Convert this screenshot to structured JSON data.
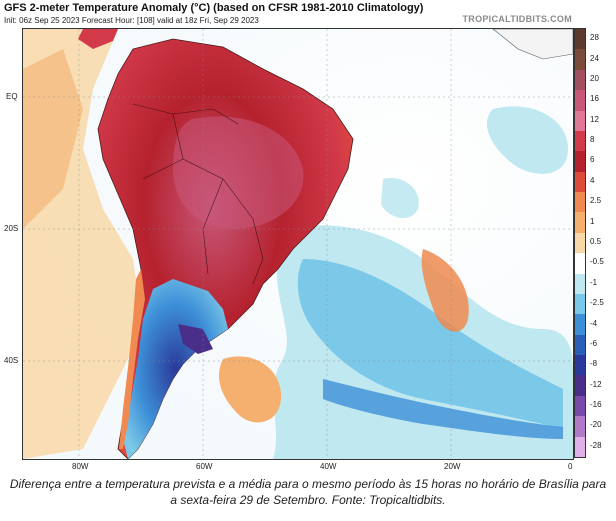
{
  "header": {
    "title": "GFS 2-meter Temperature Anomaly (°C) (based on CFSR 1981-2010 Climatology)",
    "subtitle": "Init: 06z Sep 25 2023   Forecast Hour: [108]   valid at 18z Fri, Sep 29 2023",
    "brand": "TROPICALTIDBITS.COM"
  },
  "map": {
    "lat_labels": [
      "EQ",
      "20S",
      "40S"
    ],
    "lon_labels": [
      "80W",
      "60W",
      "40W",
      "20W",
      "0"
    ]
  },
  "legend": {
    "labels": [
      "28",
      "24",
      "20",
      "16",
      "12",
      "8",
      "6",
      "4",
      "2.5",
      "1",
      "0.5",
      "-0.5",
      "-1",
      "-2.5",
      "-4",
      "-6",
      "-8",
      "-12",
      "-16",
      "-20",
      "-28"
    ],
    "colors": [
      "#5c3a2e",
      "#7a4a3a",
      "#a0505e",
      "#c8587a",
      "#e07a94",
      "#d23a4a",
      "#b5222e",
      "#e04a3a",
      "#f08a50",
      "#f5b070",
      "#f8d8a8",
      "#ffffff",
      "#bfe8f0",
      "#7cc8e8",
      "#3d8fd8",
      "#2a5fb8",
      "#2a3a9a",
      "#4a2f8a",
      "#7a4aa8",
      "#b07ac8",
      "#e0b0e8"
    ]
  },
  "caption": "Diferença entre a temperatura prevista e a média para o mesmo período às 15 horas no horário de Brasília para a sexta-feira 29 de Setembro. Fonte: Tropicaltidbits."
}
